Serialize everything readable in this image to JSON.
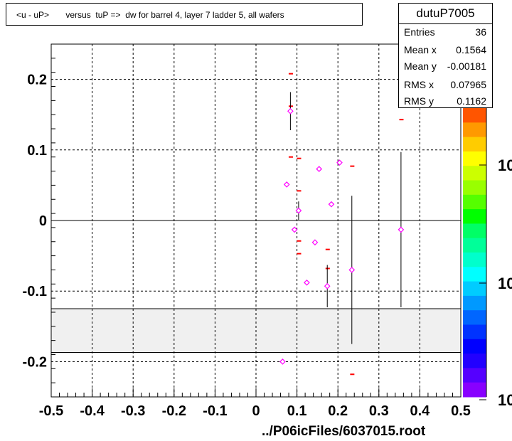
{
  "title": "<u - uP>       versus  tuP =>  dw for barrel 4, layer 7 ladder 5, all wafers",
  "stats": {
    "name": "dutuP7005",
    "rows": [
      {
        "label": "Entries",
        "value": "36"
      },
      {
        "label": "Mean x",
        "value": "0.1564"
      },
      {
        "label": "Mean y",
        "value": "-0.00181"
      },
      {
        "label": "RMS x",
        "value": "0.07965"
      },
      {
        "label": "RMS y",
        "value": "0.1162"
      }
    ]
  },
  "file_label": "../P06icFiles/6037015.root",
  "palette": {
    "labels": [
      "10",
      "10",
      "10"
    ],
    "colors": [
      "#ff5500",
      "#ff9900",
      "#ffcc00",
      "#ffff00",
      "#ccff00",
      "#99ff00",
      "#55ff00",
      "#00ff00",
      "#00ff66",
      "#00ff99",
      "#00ffcc",
      "#00ffff",
      "#00ccff",
      "#0099ff",
      "#0066ff",
      "#0033ff",
      "#0000ff",
      "#2200ff",
      "#5500ff",
      "#8800ff"
    ]
  },
  "chart_data": {
    "type": "scatter",
    "title": "<u - uP>       versus  tuP =>  dw for barrel 4, layer 7 ladder 5, all wafers",
    "xlabel": "",
    "ylabel": "",
    "xlim": [
      -0.5,
      0.5
    ],
    "ylim": [
      -0.25,
      0.25
    ],
    "x_ticks": [
      "-0.5",
      "-0.4",
      "-0.3",
      "-0.2",
      "-0.1",
      "0",
      "0.1",
      "0.2",
      "0.3",
      "0.4",
      "0.5"
    ],
    "y_ticks": [
      "0.2",
      "0.1",
      "0",
      "-0.1",
      "-0.2"
    ],
    "grid": true,
    "band": {
      "y_from": -0.187,
      "y_to": -0.125,
      "color": "#f0f0f0"
    },
    "profile_points": [
      {
        "x": 0.075,
        "y": 0.051,
        "err": 0.003
      },
      {
        "x": 0.084,
        "y": 0.155,
        "err": 0.027
      },
      {
        "x": 0.094,
        "y": -0.013,
        "err": 0.003
      },
      {
        "x": 0.104,
        "y": 0.014,
        "err": 0.013
      },
      {
        "x": 0.124,
        "y": -0.088,
        "err": 0.003
      },
      {
        "x": 0.144,
        "y": -0.031,
        "err": 0.003
      },
      {
        "x": 0.154,
        "y": 0.073,
        "err": 0.003
      },
      {
        "x": 0.174,
        "y": -0.093,
        "err": 0.03
      },
      {
        "x": 0.184,
        "y": 0.023,
        "err": 0.003
      },
      {
        "x": 0.204,
        "y": 0.082,
        "err": 0.003
      },
      {
        "x": 0.234,
        "y": -0.07,
        "err": 0.105
      },
      {
        "x": 0.354,
        "y": -0.013,
        "err": 0.11
      },
      {
        "x": 0.065,
        "y": -0.2,
        "err": 0.003
      }
    ],
    "red_markers": [
      {
        "x": 0.085,
        "y": 0.208
      },
      {
        "x": 0.085,
        "y": 0.162
      },
      {
        "x": 0.085,
        "y": 0.09
      },
      {
        "x": 0.105,
        "y": 0.088
      },
      {
        "x": 0.105,
        "y": 0.042
      },
      {
        "x": 0.105,
        "y": -0.029
      },
      {
        "x": 0.105,
        "y": -0.047
      },
      {
        "x": 0.175,
        "y": -0.041
      },
      {
        "x": 0.175,
        "y": -0.068
      },
      {
        "x": 0.235,
        "y": 0.077
      },
      {
        "x": 0.355,
        "y": 0.143
      },
      {
        "x": 0.235,
        "y": -0.218
      }
    ]
  }
}
